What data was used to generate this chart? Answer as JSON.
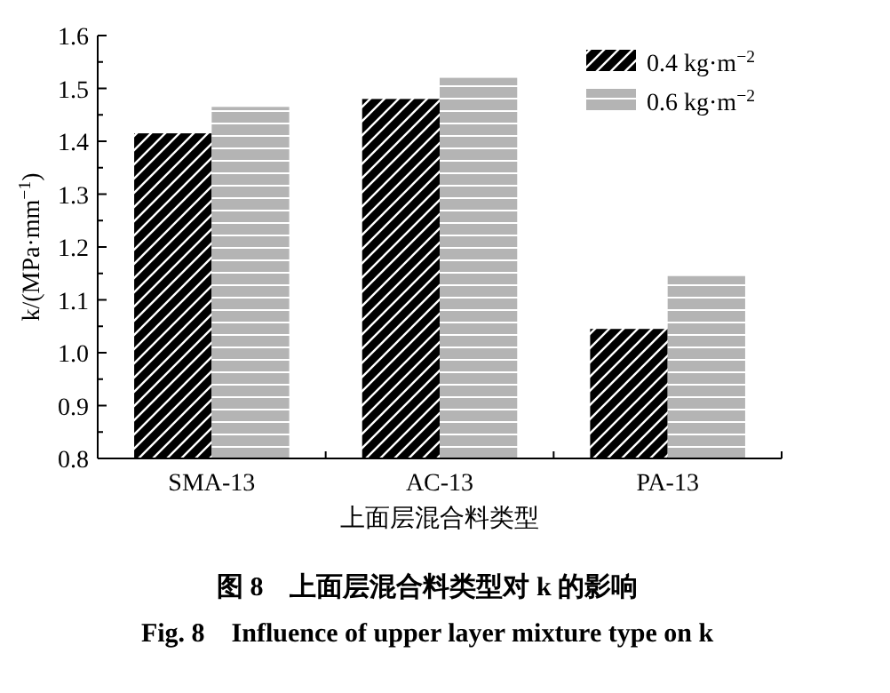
{
  "chart_data": {
    "type": "bar",
    "categories": [
      "SMA-13",
      "AC-13",
      "PA-13"
    ],
    "series": [
      {
        "name": "0.4 kg·m$^{−2}$",
        "color": "#000000",
        "values": [
          1.415,
          1.48,
          1.045
        ]
      },
      {
        "name": "0.6 kg·m$^{−2}$",
        "color": "#b4b4b4",
        "values": [
          1.465,
          1.52,
          1.145
        ]
      }
    ],
    "ylabel": "k/(MPa·mm$^{−1}$)",
    "xlabel": "上面层混合料类型",
    "ylim": [
      0.8,
      1.6
    ],
    "yticks": [
      0.8,
      {
        "value": 0.85,
        "label": null
      },
      0.9,
      {
        "value": 0.95,
        "label": null
      },
      {
        "value": 1.0,
        "label": "1.0"
      },
      {
        "value": 1.05,
        "label": null
      },
      1.1,
      {
        "value": 1.15,
        "label": null
      },
      1.2,
      {
        "value": 1.25,
        "label": null
      },
      1.3,
      {
        "value": 1.35,
        "label": null
      },
      1.4,
      {
        "value": 1.45,
        "label": null
      },
      1.5,
      {
        "value": 1.55,
        "label": null
      },
      1.6
    ],
    "legend": "top right",
    "grid": false,
    "annotations": [
      "图 8　上面层混合料类型对 k 的影响",
      "Fig. 8　Influence of upper layer mixture type on k"
    ]
  }
}
